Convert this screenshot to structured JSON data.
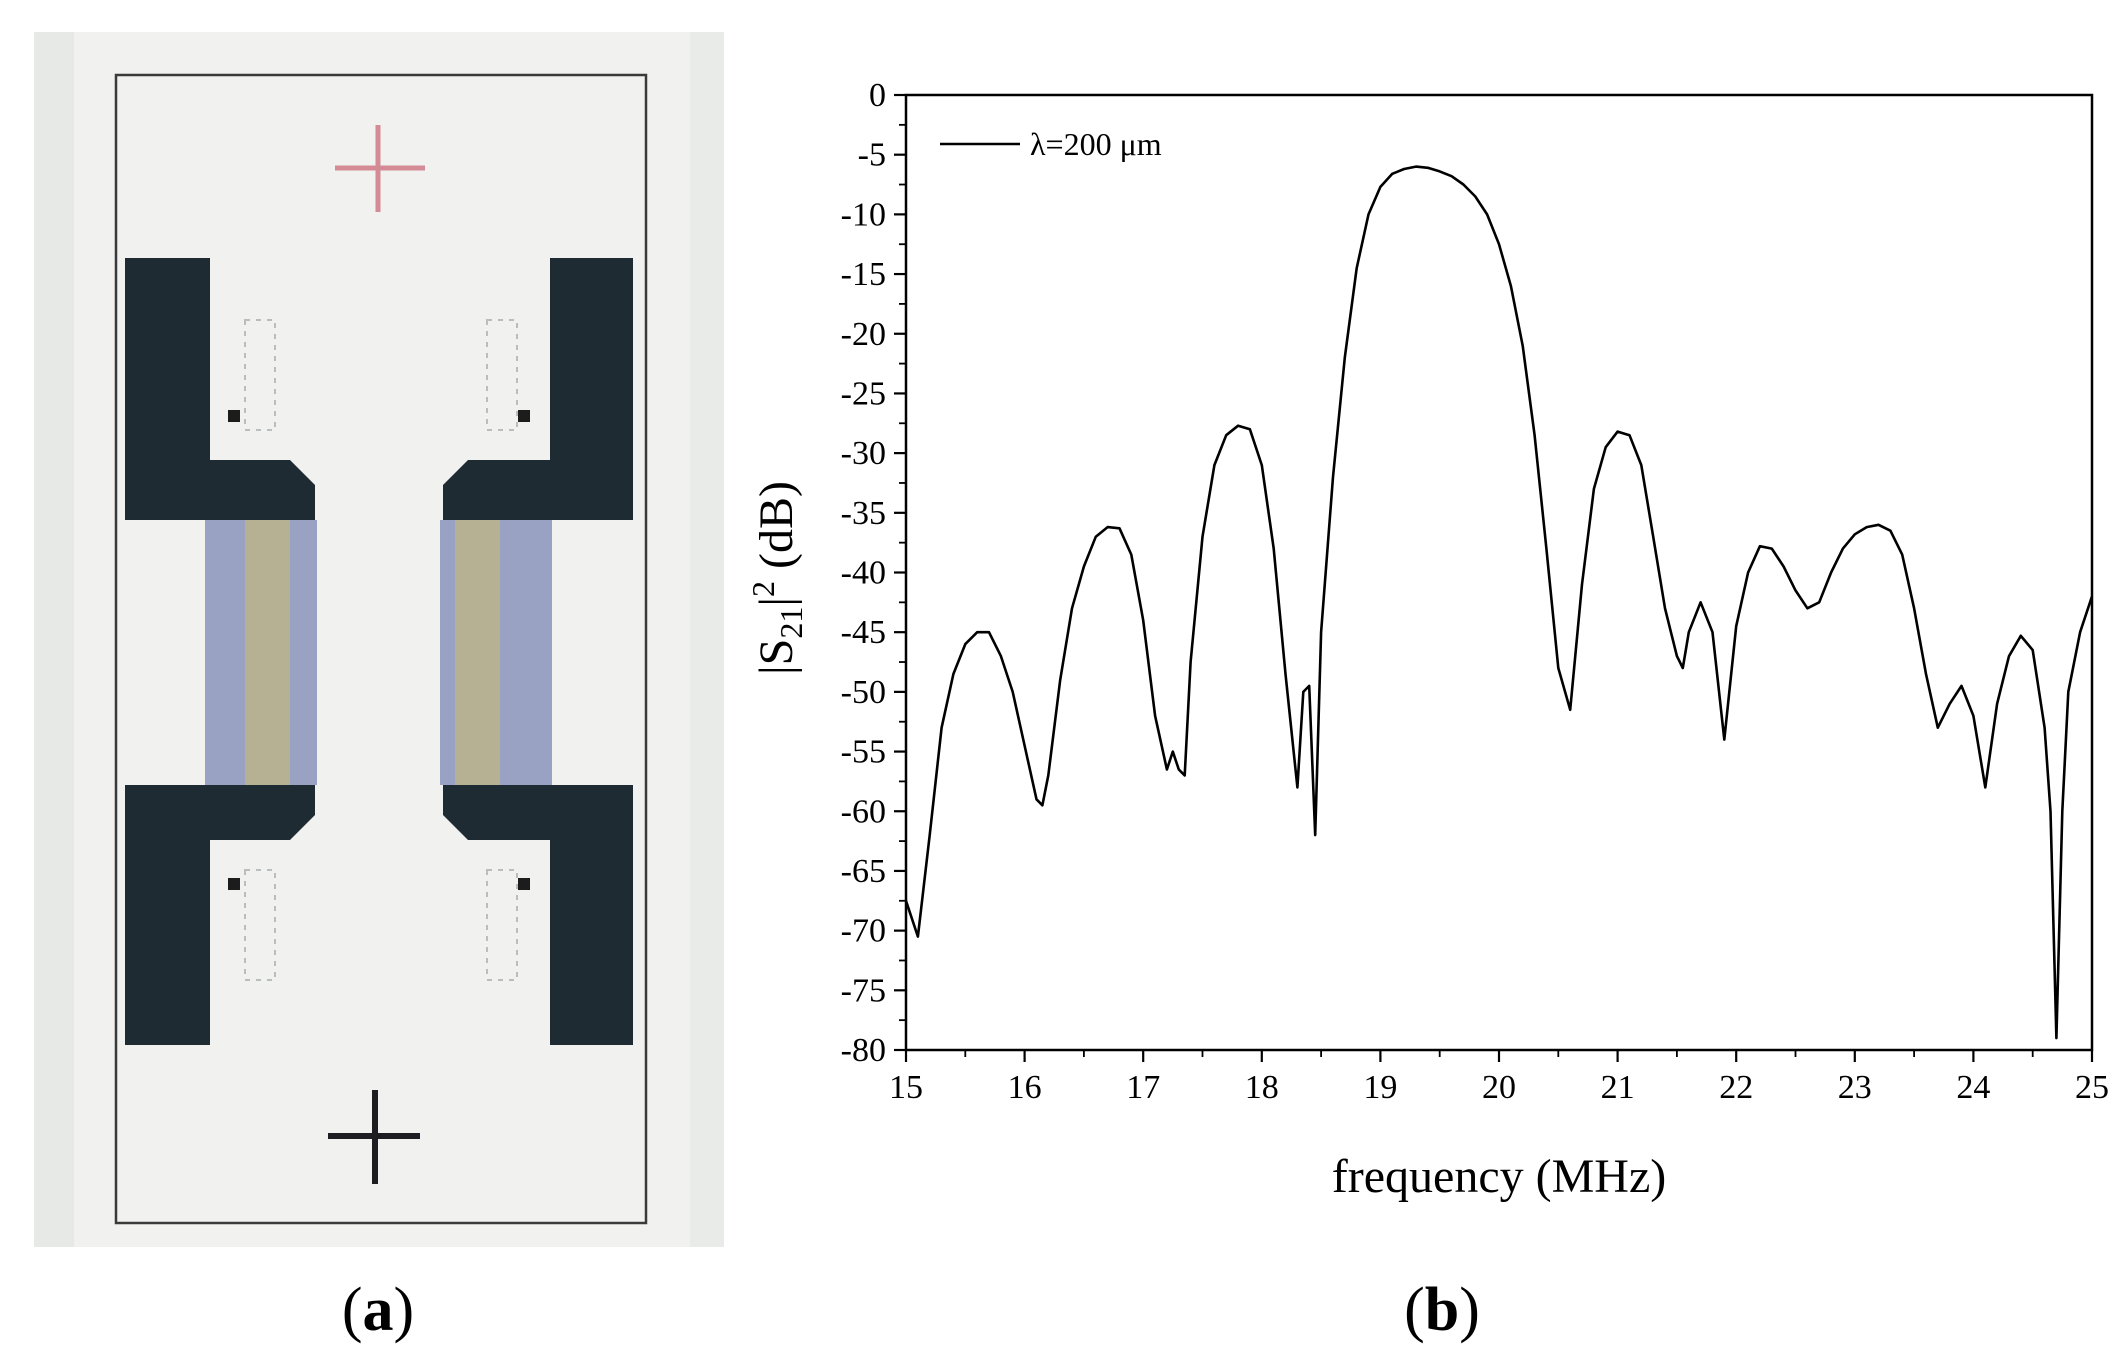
{
  "panels": {
    "a": {
      "label_open": "(",
      "label_letter": "a",
      "label_close": ")"
    },
    "b": {
      "label_open": "(",
      "label_letter": "b",
      "label_close": ")"
    }
  },
  "device_photo": {
    "colors": {
      "background": "#f1f2f0",
      "frame": "#3a3a3a",
      "electrode": "#1f2b33",
      "transducer_blue": "#9aa2c3",
      "transducer_yellow": "#bab48a",
      "top_cross": "#d48b96",
      "bottom_cross": "#1d1d22"
    }
  },
  "chart_data": {
    "type": "line",
    "xlabel": "frequency (MHz)",
    "ylabel_parts": {
      "open": "|S",
      "sub": "21",
      "close": "|",
      "sup": "2",
      "unit": " (dB)"
    },
    "xlim": [
      15,
      25
    ],
    "ylim": [
      -80,
      0
    ],
    "xticks": [
      15,
      16,
      17,
      18,
      19,
      20,
      21,
      22,
      23,
      24,
      25
    ],
    "yticks": [
      0,
      -5,
      -10,
      -15,
      -20,
      -25,
      -30,
      -35,
      -40,
      -45,
      -50,
      -55,
      -60,
      -65,
      -70,
      -75,
      -80
    ],
    "grid": false,
    "legend_position": "top-left",
    "series": [
      {
        "name": "λ=200 μm",
        "color": "#000000",
        "x": [
          15.0,
          15.1,
          15.2,
          15.3,
          15.4,
          15.5,
          15.6,
          15.7,
          15.8,
          15.9,
          16.0,
          16.1,
          16.15,
          16.2,
          16.3,
          16.4,
          16.5,
          16.6,
          16.7,
          16.8,
          16.9,
          17.0,
          17.1,
          17.2,
          17.25,
          17.3,
          17.35,
          17.4,
          17.5,
          17.6,
          17.7,
          17.8,
          17.9,
          18.0,
          18.1,
          18.2,
          18.3,
          18.35,
          18.4,
          18.45,
          18.5,
          18.6,
          18.7,
          18.8,
          18.9,
          19.0,
          19.1,
          19.2,
          19.3,
          19.4,
          19.5,
          19.6,
          19.7,
          19.8,
          19.9,
          20.0,
          20.1,
          20.2,
          20.3,
          20.4,
          20.5,
          20.6,
          20.7,
          20.8,
          20.9,
          21.0,
          21.1,
          21.2,
          21.3,
          21.4,
          21.5,
          21.55,
          21.6,
          21.7,
          21.8,
          21.9,
          22.0,
          22.1,
          22.2,
          22.3,
          22.4,
          22.5,
          22.6,
          22.7,
          22.8,
          22.9,
          23.0,
          23.1,
          23.2,
          23.3,
          23.4,
          23.5,
          23.6,
          23.7,
          23.8,
          23.9,
          24.0,
          24.1,
          24.2,
          24.3,
          24.4,
          24.5,
          24.6,
          24.65,
          24.7,
          24.75,
          24.8,
          24.9,
          25.0
        ],
        "y": [
          -67.5,
          -70.5,
          -62.0,
          -53.0,
          -48.5,
          -46.0,
          -45.0,
          -45.0,
          -47.0,
          -50.0,
          -54.5,
          -59.0,
          -59.5,
          -57.0,
          -49.0,
          -43.0,
          -39.5,
          -37.0,
          -36.2,
          -36.3,
          -38.5,
          -44.0,
          -52.0,
          -56.5,
          -55.0,
          -56.5,
          -57.0,
          -47.5,
          -37.0,
          -31.0,
          -28.5,
          -27.7,
          -28.0,
          -31.0,
          -38.0,
          -48.5,
          -58.0,
          -50.0,
          -49.5,
          -62.0,
          -45.0,
          -32.0,
          -22.0,
          -14.5,
          -10.0,
          -7.7,
          -6.6,
          -6.2,
          -6.0,
          -6.1,
          -6.4,
          -6.8,
          -7.5,
          -8.5,
          -10.0,
          -12.5,
          -16.0,
          -21.0,
          -28.5,
          -38.0,
          -48.0,
          -51.5,
          -41.0,
          -33.0,
          -29.5,
          -28.2,
          -28.5,
          -31.0,
          -37.0,
          -43.0,
          -47.0,
          -48.0,
          -45.0,
          -42.5,
          -45.0,
          -54.0,
          -44.5,
          -40.0,
          -37.8,
          -38.0,
          -39.5,
          -41.5,
          -43.0,
          -42.5,
          -40.0,
          -38.0,
          -36.8,
          -36.2,
          -36.0,
          -36.5,
          -38.5,
          -43.0,
          -48.5,
          -53.0,
          -51.0,
          -49.5,
          -52.0,
          -58.0,
          -51.0,
          -47.0,
          -45.3,
          -46.5,
          -53.0,
          -60.0,
          -79.0,
          -60.0,
          -50.0,
          -45.0,
          -42.0
        ]
      }
    ]
  }
}
